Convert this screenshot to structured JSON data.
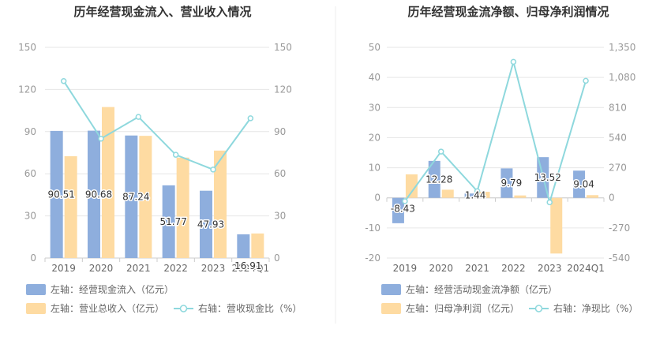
{
  "chart_data": [
    {
      "type": "bar",
      "title": "历年经营现金流入、营业收入情况",
      "categories": [
        "2019",
        "2020",
        "2021",
        "2022",
        "2023",
        "2024Q1"
      ],
      "series": [
        {
          "name": "左轴：经营现金流入（亿元）",
          "type": "bar",
          "axis": "left",
          "color": "#8eaedd",
          "values": [
            90.51,
            90.68,
            87.24,
            51.77,
            47.93,
            16.91
          ],
          "value_labels": true
        },
        {
          "name": "左轴：营业总收入（亿元）",
          "type": "bar",
          "axis": "left",
          "color": "#fedba2",
          "values": [
            72.5,
            107.5,
            87.0,
            71.5,
            76.5,
            17.5
          ],
          "value_labels": false
        },
        {
          "name": "右轴：营收现金比（%）",
          "type": "line",
          "axis": "right",
          "color": "#8ed8dd",
          "values": [
            126.0,
            85.0,
            100.5,
            73.5,
            63.0,
            99.5
          ]
        }
      ],
      "y_left": {
        "ylim": [
          0,
          150
        ],
        "ticks": [
          0,
          30,
          60,
          90,
          120,
          150
        ]
      },
      "y_right": {
        "ylim": [
          0,
          150
        ],
        "ticks": [
          0,
          30,
          60,
          90,
          120,
          150
        ]
      },
      "grid": true,
      "legend_position": "bottom-left"
    },
    {
      "type": "bar",
      "title": "历年经营现金流净额、归母净利润情况",
      "categories": [
        "2019",
        "2020",
        "2021",
        "2022",
        "2023",
        "2024Q1"
      ],
      "series": [
        {
          "name": "左轴：经营活动现金流净额（亿元）",
          "type": "bar",
          "axis": "left",
          "color": "#8eaedd",
          "values": [
            -8.43,
            12.28,
            1.44,
            9.79,
            13.52,
            9.04
          ],
          "value_labels": true
        },
        {
          "name": "左轴：归母净利润（亿元）",
          "type": "bar",
          "axis": "left",
          "color": "#fedba2",
          "values": [
            7.8,
            2.7,
            2.0,
            0.8,
            -18.5,
            0.9
          ],
          "value_labels": false
        },
        {
          "name": "右轴：净现比（%）",
          "type": "line",
          "axis": "right",
          "color": "#8ed8dd",
          "values": [
            -30,
            415,
            60,
            1220,
            -40,
            1050
          ]
        }
      ],
      "y_left": {
        "ylim": [
          -20,
          50
        ],
        "ticks": [
          -20,
          -10,
          0,
          10,
          20,
          30,
          40,
          50
        ]
      },
      "y_right": {
        "ylim": [
          -540,
          1350
        ],
        "ticks": [
          -540,
          -270,
          0,
          270,
          540,
          810,
          1080,
          1350
        ],
        "tick_labels": [
          "-540",
          "-270",
          "0",
          "270",
          "540",
          "810",
          "1,080",
          "1,350"
        ]
      },
      "grid": true,
      "legend_position": "bottom-left"
    }
  ]
}
